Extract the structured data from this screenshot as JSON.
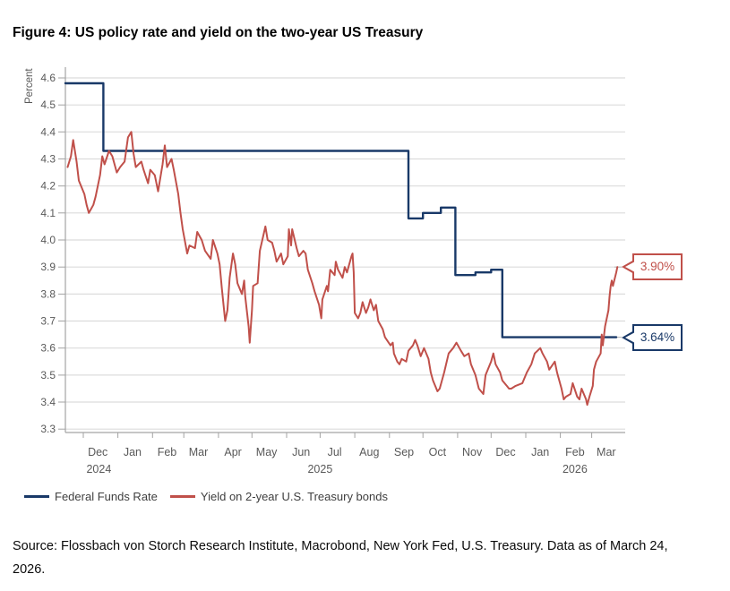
{
  "figure": {
    "title": "Figure 4: US policy rate and yield on the two-year US Treasury",
    "source_text": "Source: Flossbach von Storch Research Institute, Macrobond, New York Fed, U.S. Treasury. Data as of March 24, 2026."
  },
  "colors": {
    "fed_funds": "#193968",
    "treasury": "#c0504a",
    "grid": "#dcdcdc",
    "axis": "#a3a3a3",
    "tick_text": "#595959",
    "connector": "#b3b3b3"
  },
  "legend": [
    {
      "label": "Federal Funds Rate",
      "color": "#193968"
    },
    {
      "label": "Yield on 2-year U.S. Treasury bonds",
      "color": "#c0504a"
    }
  ],
  "callouts": [
    {
      "label": "3.90%",
      "value": 3.9,
      "color": "#c0504a",
      "connect_x": 686
    },
    {
      "label": "3.64%",
      "value": 3.64,
      "color": "#193968",
      "connect_x": 687
    }
  ],
  "chart_data": {
    "type": "line",
    "title": "Figure 4: US policy rate and yield on the two-year US Treasury",
    "xlabel": "",
    "ylabel": "Percent",
    "ylim": [
      3.3,
      4.6
    ],
    "ytick_step": 0.1,
    "grid": true,
    "legend_position": "bottom-left",
    "x_range": [
      "2024-11-15",
      "2026-03-31"
    ],
    "x_tick_months": [
      "Dec",
      "Jan",
      "Feb",
      "Mar",
      "Apr",
      "May",
      "Jun",
      "Jul",
      "Aug",
      "Sep",
      "Oct",
      "Nov",
      "Dec",
      "Jan",
      "Feb",
      "Mar"
    ],
    "year_labels": [
      {
        "label": "2024",
        "date": "2024-12-15"
      },
      {
        "label": "2025",
        "date": "2025-07-01"
      },
      {
        "label": "2026",
        "date": "2026-02-14"
      }
    ],
    "series": [
      {
        "name": "Federal Funds Rate",
        "style": "step",
        "color": "#193968",
        "end": "2026-03-23",
        "points": [
          [
            "2024-11-15",
            4.58
          ],
          [
            "2024-12-19",
            4.33
          ],
          [
            "2025-09-18",
            4.08
          ],
          [
            "2025-10-01",
            4.1
          ],
          [
            "2025-10-17",
            4.12
          ],
          [
            "2025-10-30",
            3.87
          ],
          [
            "2025-11-17",
            3.88
          ],
          [
            "2025-12-01",
            3.89
          ],
          [
            "2025-12-11",
            3.64
          ]
        ]
      },
      {
        "name": "Yield on 2-year U.S. Treasury bonds",
        "style": "line",
        "color": "#c0504a",
        "points": [
          [
            "2024-11-17",
            4.27
          ],
          [
            "2024-11-20",
            4.31
          ],
          [
            "2024-11-22",
            4.37
          ],
          [
            "2024-11-25",
            4.29
          ],
          [
            "2024-11-27",
            4.22
          ],
          [
            "2024-12-02",
            4.17
          ],
          [
            "2024-12-04",
            4.13
          ],
          [
            "2024-12-06",
            4.1
          ],
          [
            "2024-12-10",
            4.13
          ],
          [
            "2024-12-12",
            4.16
          ],
          [
            "2024-12-16",
            4.24
          ],
          [
            "2024-12-18",
            4.31
          ],
          [
            "2024-12-20",
            4.28
          ],
          [
            "2024-12-24",
            4.33
          ],
          [
            "2024-12-27",
            4.31
          ],
          [
            "2024-12-31",
            4.25
          ],
          [
            "2025-01-03",
            4.27
          ],
          [
            "2025-01-07",
            4.29
          ],
          [
            "2025-01-10",
            4.38
          ],
          [
            "2025-01-13",
            4.4
          ],
          [
            "2025-01-15",
            4.32
          ],
          [
            "2025-01-17",
            4.27
          ],
          [
            "2025-01-22",
            4.29
          ],
          [
            "2025-01-24",
            4.26
          ],
          [
            "2025-01-28",
            4.21
          ],
          [
            "2025-01-30",
            4.26
          ],
          [
            "2025-02-03",
            4.24
          ],
          [
            "2025-02-06",
            4.18
          ],
          [
            "2025-02-10",
            4.28
          ],
          [
            "2025-02-12",
            4.35
          ],
          [
            "2025-02-14",
            4.27
          ],
          [
            "2025-02-18",
            4.3
          ],
          [
            "2025-02-20",
            4.26
          ],
          [
            "2025-02-24",
            4.17
          ],
          [
            "2025-02-26",
            4.1
          ],
          [
            "2025-02-28",
            4.04
          ],
          [
            "2025-03-04",
            3.95
          ],
          [
            "2025-03-06",
            3.98
          ],
          [
            "2025-03-11",
            3.97
          ],
          [
            "2025-03-13",
            4.03
          ],
          [
            "2025-03-17",
            4.0
          ],
          [
            "2025-03-20",
            3.96
          ],
          [
            "2025-03-25",
            3.93
          ],
          [
            "2025-03-27",
            4.0
          ],
          [
            "2025-03-31",
            3.95
          ],
          [
            "2025-04-02",
            3.91
          ],
          [
            "2025-04-04",
            3.82
          ],
          [
            "2025-04-07",
            3.7
          ],
          [
            "2025-04-09",
            3.74
          ],
          [
            "2025-04-11",
            3.86
          ],
          [
            "2025-04-14",
            3.95
          ],
          [
            "2025-04-16",
            3.91
          ],
          [
            "2025-04-18",
            3.84
          ],
          [
            "2025-04-22",
            3.8
          ],
          [
            "2025-04-24",
            3.85
          ],
          [
            "2025-04-25",
            3.79
          ],
          [
            "2025-04-28",
            3.68
          ],
          [
            "2025-04-29",
            3.62
          ],
          [
            "2025-05-01",
            3.74
          ],
          [
            "2025-05-02",
            3.83
          ],
          [
            "2025-05-06",
            3.84
          ],
          [
            "2025-05-08",
            3.96
          ],
          [
            "2025-05-13",
            4.05
          ],
          [
            "2025-05-15",
            4.0
          ],
          [
            "2025-05-19",
            3.99
          ],
          [
            "2025-05-21",
            3.96
          ],
          [
            "2025-05-23",
            3.92
          ],
          [
            "2025-05-27",
            3.95
          ],
          [
            "2025-05-29",
            3.91
          ],
          [
            "2025-06-02",
            3.94
          ],
          [
            "2025-06-03",
            4.04
          ],
          [
            "2025-06-05",
            3.98
          ],
          [
            "2025-06-06",
            4.04
          ],
          [
            "2025-06-10",
            3.97
          ],
          [
            "2025-06-12",
            3.94
          ],
          [
            "2025-06-16",
            3.96
          ],
          [
            "2025-06-18",
            3.95
          ],
          [
            "2025-06-20",
            3.89
          ],
          [
            "2025-06-24",
            3.84
          ],
          [
            "2025-06-26",
            3.81
          ],
          [
            "2025-06-30",
            3.76
          ],
          [
            "2025-07-02",
            3.71
          ],
          [
            "2025-07-03",
            3.78
          ],
          [
            "2025-07-07",
            3.83
          ],
          [
            "2025-07-08",
            3.81
          ],
          [
            "2025-07-10",
            3.89
          ],
          [
            "2025-07-14",
            3.87
          ],
          [
            "2025-07-15",
            3.92
          ],
          [
            "2025-07-17",
            3.89
          ],
          [
            "2025-07-21",
            3.86
          ],
          [
            "2025-07-23",
            3.9
          ],
          [
            "2025-07-25",
            3.88
          ],
          [
            "2025-07-29",
            3.94
          ],
          [
            "2025-07-30",
            3.95
          ],
          [
            "2025-07-31",
            3.88
          ],
          [
            "2025-08-01",
            3.73
          ],
          [
            "2025-08-04",
            3.71
          ],
          [
            "2025-08-06",
            3.73
          ],
          [
            "2025-08-08",
            3.77
          ],
          [
            "2025-08-11",
            3.73
          ],
          [
            "2025-08-13",
            3.75
          ],
          [
            "2025-08-15",
            3.78
          ],
          [
            "2025-08-18",
            3.74
          ],
          [
            "2025-08-20",
            3.76
          ],
          [
            "2025-08-22",
            3.7
          ],
          [
            "2025-08-26",
            3.67
          ],
          [
            "2025-08-28",
            3.64
          ],
          [
            "2025-09-02",
            3.61
          ],
          [
            "2025-09-04",
            3.62
          ],
          [
            "2025-09-05",
            3.58
          ],
          [
            "2025-09-08",
            3.55
          ],
          [
            "2025-09-10",
            3.54
          ],
          [
            "2025-09-12",
            3.56
          ],
          [
            "2025-09-16",
            3.55
          ],
          [
            "2025-09-18",
            3.59
          ],
          [
            "2025-09-22",
            3.61
          ],
          [
            "2025-09-24",
            3.63
          ],
          [
            "2025-09-26",
            3.61
          ],
          [
            "2025-09-29",
            3.57
          ],
          [
            "2025-10-02",
            3.6
          ],
          [
            "2025-10-06",
            3.56
          ],
          [
            "2025-10-08",
            3.51
          ],
          [
            "2025-10-10",
            3.48
          ],
          [
            "2025-10-14",
            3.44
          ],
          [
            "2025-10-16",
            3.45
          ],
          [
            "2025-10-20",
            3.51
          ],
          [
            "2025-10-24",
            3.58
          ],
          [
            "2025-10-28",
            3.6
          ],
          [
            "2025-10-31",
            3.62
          ],
          [
            "2025-11-04",
            3.59
          ],
          [
            "2025-11-07",
            3.57
          ],
          [
            "2025-11-11",
            3.58
          ],
          [
            "2025-11-13",
            3.54
          ],
          [
            "2025-11-17",
            3.5
          ],
          [
            "2025-11-20",
            3.45
          ],
          [
            "2025-11-24",
            3.43
          ],
          [
            "2025-11-26",
            3.5
          ],
          [
            "2025-12-01",
            3.55
          ],
          [
            "2025-12-03",
            3.58
          ],
          [
            "2025-12-05",
            3.54
          ],
          [
            "2025-12-09",
            3.51
          ],
          [
            "2025-12-11",
            3.48
          ],
          [
            "2025-12-15",
            3.46
          ],
          [
            "2025-12-17",
            3.45
          ],
          [
            "2025-12-19",
            3.45
          ],
          [
            "2025-12-23",
            3.46
          ],
          [
            "2025-12-29",
            3.47
          ],
          [
            "2025-12-31",
            3.49
          ],
          [
            "2026-01-02",
            3.51
          ],
          [
            "2026-01-06",
            3.54
          ],
          [
            "2026-01-09",
            3.58
          ],
          [
            "2026-01-14",
            3.6
          ],
          [
            "2026-01-16",
            3.58
          ],
          [
            "2026-01-20",
            3.55
          ],
          [
            "2026-01-22",
            3.52
          ],
          [
            "2026-01-27",
            3.55
          ],
          [
            "2026-01-29",
            3.51
          ],
          [
            "2026-02-02",
            3.45
          ],
          [
            "2026-02-04",
            3.41
          ],
          [
            "2026-02-06",
            3.42
          ],
          [
            "2026-02-10",
            3.43
          ],
          [
            "2026-02-12",
            3.47
          ],
          [
            "2026-02-16",
            3.42
          ],
          [
            "2026-02-18",
            3.41
          ],
          [
            "2026-02-20",
            3.45
          ],
          [
            "2026-02-24",
            3.41
          ],
          [
            "2026-02-25",
            3.39
          ],
          [
            "2026-02-27",
            3.42
          ],
          [
            "2026-03-02",
            3.46
          ],
          [
            "2026-03-03",
            3.52
          ],
          [
            "2026-03-05",
            3.55
          ],
          [
            "2026-03-09",
            3.58
          ],
          [
            "2026-03-10",
            3.65
          ],
          [
            "2026-03-11",
            3.61
          ],
          [
            "2026-03-13",
            3.68
          ],
          [
            "2026-03-16",
            3.74
          ],
          [
            "2026-03-17",
            3.79
          ],
          [
            "2026-03-18",
            3.83
          ],
          [
            "2026-03-19",
            3.85
          ],
          [
            "2026-03-20",
            3.83
          ],
          [
            "2026-03-23",
            3.88
          ],
          [
            "2026-03-24",
            3.9
          ]
        ]
      }
    ]
  }
}
